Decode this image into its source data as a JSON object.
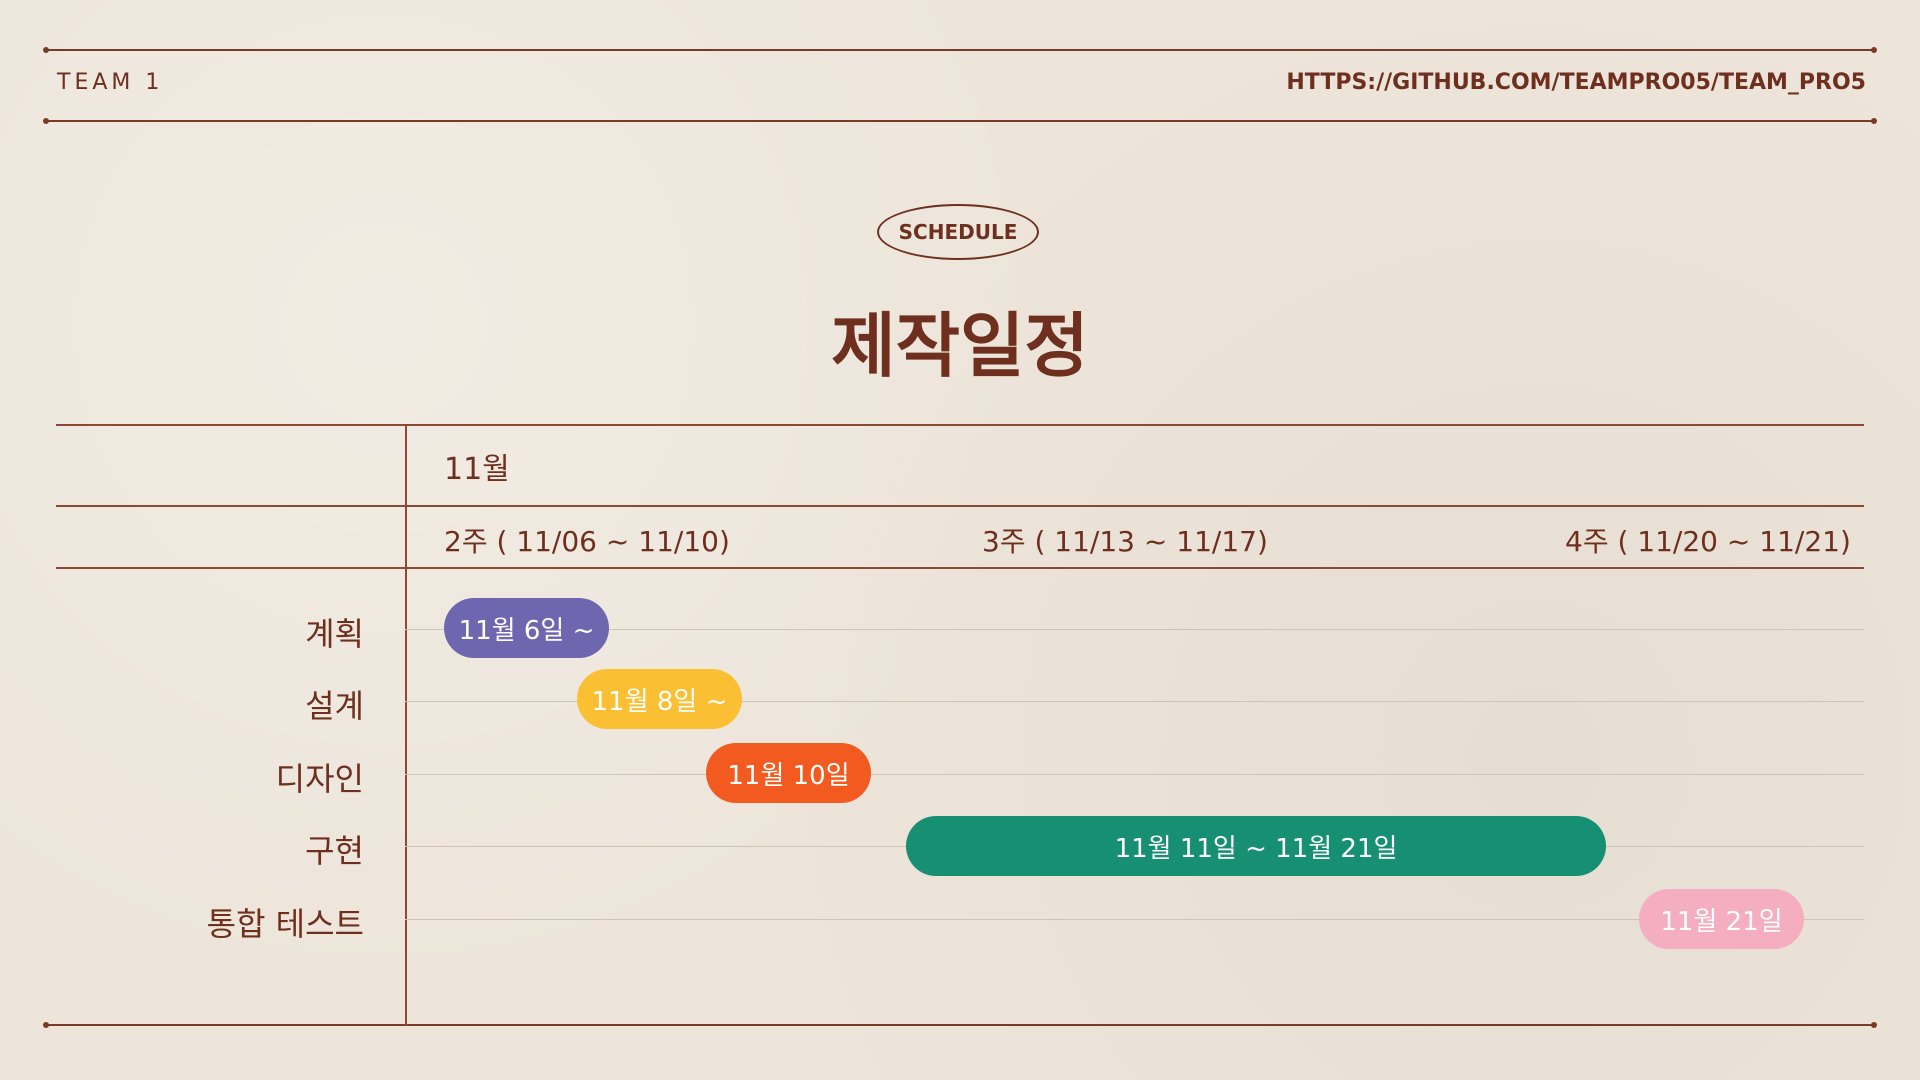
{
  "header": {
    "team": "TEAM 1",
    "url": "HTTPS://GITHUB.COM/TEAMPRO05/TEAM_PRO5"
  },
  "section_badge": "SCHEDULE",
  "title": "제작일정",
  "schedule": {
    "month": "11월",
    "weeks": [
      "2주 ( 11/06 ~ 11/10)",
      "3주 ( 11/13 ~ 11/17)",
      "4주 ( 11/20 ~ 11/21)"
    ],
    "tasks": [
      {
        "name": "계획",
        "label": "11월 6일 ~",
        "color": "#6e67b0"
      },
      {
        "name": "설계",
        "label": "11월 8일 ~",
        "color": "#fbbf33"
      },
      {
        "name": "디자인",
        "label": "11월 10일",
        "color": "#f25a1f"
      },
      {
        "name": "구현",
        "label": "11월 11일 ~ 11월 21일",
        "color": "#178f73"
      },
      {
        "name": "통합 테스트",
        "label": "11월 21일",
        "color": "#f4aebf"
      }
    ]
  }
}
